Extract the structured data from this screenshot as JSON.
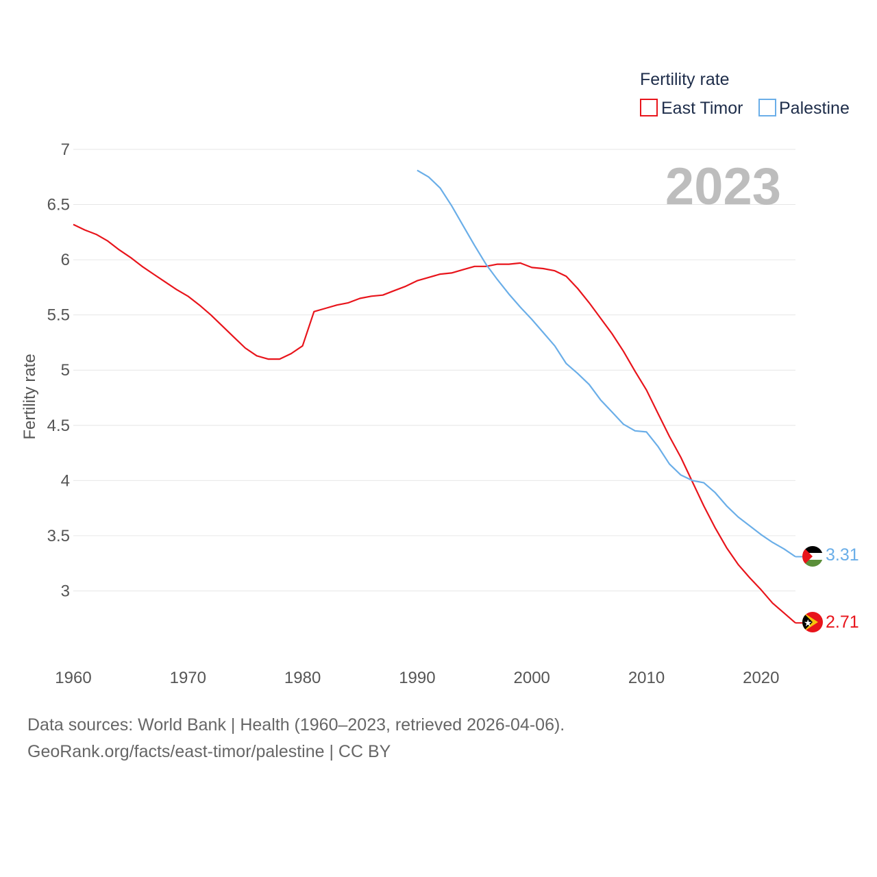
{
  "chart_data": {
    "type": "line",
    "title": "",
    "year_label": "2023",
    "xlabel": "",
    "ylabel": "Fertility rate",
    "xlim": [
      1960,
      2023
    ],
    "ylim": [
      2.5,
      7
    ],
    "x_ticks": [
      1960,
      1970,
      1980,
      1990,
      2000,
      2010,
      2020
    ],
    "y_ticks": [
      3,
      3.5,
      4,
      4.5,
      5,
      5.5,
      6,
      6.5,
      7
    ],
    "grid": true,
    "legend": {
      "title": "Fertility rate",
      "position": "top-right",
      "entries": [
        "East Timor",
        "Palestine"
      ]
    },
    "series": [
      {
        "name": "East Timor",
        "color": "#e8141b",
        "end_label": "2.71",
        "flag": "east-timor-flag",
        "x": [
          1960,
          1961,
          1962,
          1963,
          1964,
          1965,
          1966,
          1967,
          1968,
          1969,
          1970,
          1971,
          1972,
          1973,
          1974,
          1975,
          1976,
          1977,
          1978,
          1979,
          1980,
          1981,
          1982,
          1983,
          1984,
          1985,
          1986,
          1987,
          1988,
          1989,
          1990,
          1991,
          1992,
          1993,
          1994,
          1995,
          1996,
          1997,
          1998,
          1999,
          2000,
          2001,
          2002,
          2003,
          2004,
          2005,
          2006,
          2007,
          2008,
          2009,
          2010,
          2011,
          2012,
          2013,
          2014,
          2015,
          2016,
          2017,
          2018,
          2019,
          2020,
          2021,
          2022,
          2023
        ],
        "values": [
          6.32,
          6.27,
          6.23,
          6.17,
          6.09,
          6.02,
          5.94,
          5.87,
          5.8,
          5.73,
          5.67,
          5.59,
          5.5,
          5.4,
          5.3,
          5.2,
          5.13,
          5.1,
          5.1,
          5.15,
          5.22,
          5.53,
          5.56,
          5.59,
          5.61,
          5.65,
          5.67,
          5.68,
          5.72,
          5.76,
          5.81,
          5.84,
          5.87,
          5.88,
          5.91,
          5.94,
          5.94,
          5.96,
          5.96,
          5.97,
          5.93,
          5.92,
          5.9,
          5.85,
          5.74,
          5.61,
          5.47,
          5.33,
          5.17,
          4.99,
          4.82,
          4.61,
          4.4,
          4.21,
          3.99,
          3.77,
          3.57,
          3.39,
          3.24,
          3.12,
          3.01,
          2.89,
          2.8,
          2.71
        ]
      },
      {
        "name": "Palestine",
        "color": "#6aaee8",
        "end_label": "3.31",
        "flag": "palestine-flag",
        "x": [
          1990,
          1991,
          1992,
          1993,
          1994,
          1995,
          1996,
          1997,
          1998,
          1999,
          2000,
          2001,
          2002,
          2003,
          2004,
          2005,
          2006,
          2007,
          2008,
          2009,
          2010,
          2011,
          2012,
          2013,
          2014,
          2015,
          2016,
          2017,
          2018,
          2019,
          2020,
          2021,
          2022,
          2023
        ],
        "values": [
          6.81,
          6.75,
          6.65,
          6.49,
          6.31,
          6.13,
          5.96,
          5.82,
          5.69,
          5.57,
          5.46,
          5.34,
          5.22,
          5.06,
          4.97,
          4.87,
          4.73,
          4.62,
          4.51,
          4.45,
          4.44,
          4.31,
          4.15,
          4.05,
          4.0,
          3.98,
          3.89,
          3.77,
          3.67,
          3.59,
          3.51,
          3.44,
          3.38,
          3.31
        ]
      }
    ]
  },
  "footer": {
    "line1": "Data sources: World Bank | Health (1960–2023, retrieved 2026-04-06).",
    "line2": "GeoRank.org/facts/east-timor/palestine | CC BY"
  }
}
